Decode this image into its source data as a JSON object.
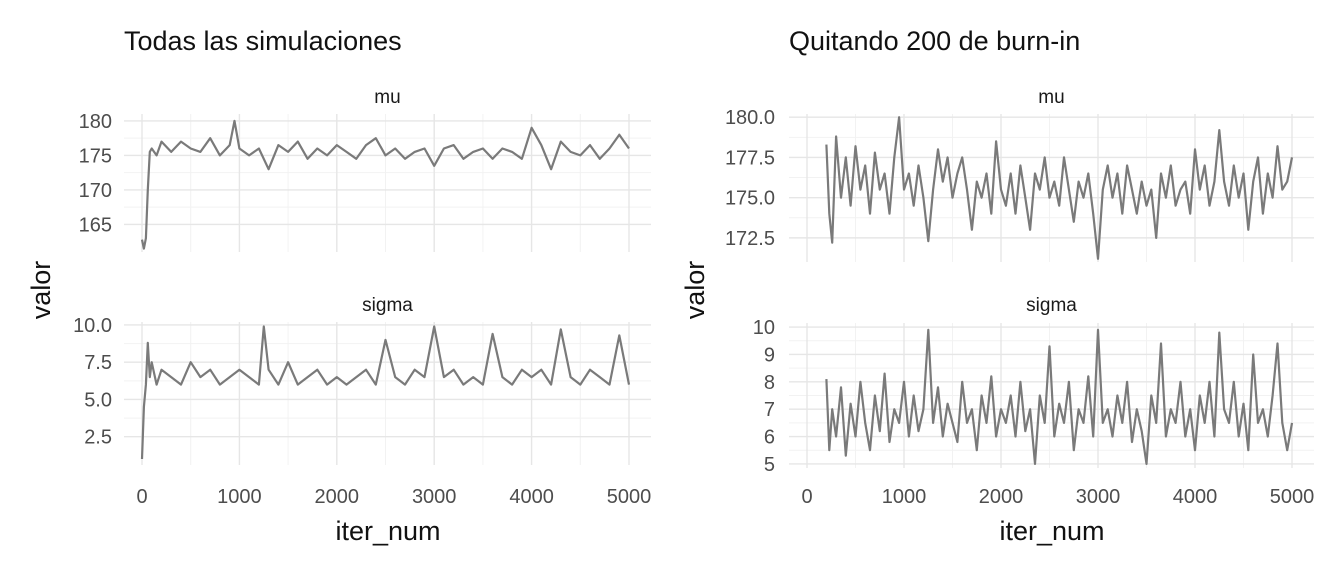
{
  "chart_data": [
    {
      "type": "line",
      "title": "Todas las simulaciones",
      "xlabel": "iter_num",
      "ylabel": "valor",
      "xlim": [
        0,
        5000
      ],
      "xticks": [
        "0",
        "1000",
        "2000",
        "3000",
        "4000",
        "5000"
      ],
      "color": "#7a7a7a",
      "grid": true,
      "facets": [
        {
          "name": "mu",
          "ylim": [
            161,
            181
          ],
          "yticks": [
            "165",
            "170",
            "175",
            "180"
          ],
          "x": [
            0,
            20,
            40,
            60,
            80,
            100,
            150,
            200,
            300,
            400,
            500,
            600,
            700,
            800,
            900,
            950,
            1000,
            1100,
            1200,
            1300,
            1400,
            1500,
            1600,
            1700,
            1800,
            1900,
            2000,
            2100,
            2200,
            2300,
            2400,
            2500,
            2600,
            2700,
            2800,
            2900,
            3000,
            3100,
            3200,
            3300,
            3400,
            3500,
            3600,
            3700,
            3800,
            3900,
            4000,
            4100,
            4200,
            4300,
            4400,
            4500,
            4600,
            4700,
            4800,
            4900,
            5000
          ],
          "values": [
            162.8,
            161.5,
            163.0,
            170.0,
            175.5,
            176.0,
            175.0,
            177.0,
            175.5,
            177.0,
            176.0,
            175.5,
            177.5,
            175.0,
            176.5,
            180.0,
            176.0,
            175.0,
            176.0,
            173.0,
            176.5,
            175.5,
            177.0,
            174.5,
            176.0,
            175.0,
            176.5,
            175.5,
            174.5,
            176.5,
            177.5,
            175.0,
            176.0,
            174.5,
            175.5,
            176.0,
            173.5,
            176.0,
            176.5,
            174.5,
            175.5,
            176.0,
            174.5,
            176.0,
            175.5,
            174.5,
            179.0,
            176.5,
            173.0,
            177.0,
            175.5,
            175.0,
            176.5,
            174.5,
            176.0,
            178.0,
            176.0
          ]
        },
        {
          "name": "sigma",
          "ylim": [
            0.6,
            10.2
          ],
          "yticks": [
            "2.5",
            "5.0",
            "7.5",
            "10.0"
          ],
          "x": [
            0,
            20,
            40,
            60,
            80,
            100,
            150,
            200,
            300,
            400,
            500,
            600,
            700,
            800,
            900,
            1000,
            1100,
            1200,
            1250,
            1300,
            1400,
            1500,
            1600,
            1700,
            1800,
            1900,
            2000,
            2100,
            2200,
            2300,
            2400,
            2500,
            2600,
            2700,
            2800,
            2900,
            3000,
            3100,
            3200,
            3300,
            3400,
            3500,
            3600,
            3700,
            3800,
            3900,
            4000,
            4100,
            4200,
            4300,
            4400,
            4500,
            4600,
            4700,
            4800,
            4900,
            5000
          ],
          "values": [
            1.0,
            4.5,
            6.0,
            8.8,
            6.5,
            7.5,
            6.0,
            7.0,
            6.5,
            6.0,
            7.5,
            6.5,
            7.0,
            6.0,
            6.5,
            7.0,
            6.5,
            6.0,
            9.9,
            7.0,
            6.0,
            7.5,
            6.0,
            6.5,
            7.0,
            6.0,
            6.5,
            6.0,
            6.5,
            7.0,
            6.0,
            9.0,
            6.5,
            6.0,
            7.0,
            6.5,
            9.9,
            6.5,
            7.0,
            6.0,
            6.5,
            6.0,
            9.4,
            6.5,
            6.0,
            7.0,
            6.5,
            7.0,
            6.0,
            9.7,
            6.5,
            6.0,
            7.0,
            6.5,
            6.0,
            9.3,
            6.0
          ]
        }
      ]
    },
    {
      "type": "line",
      "title": "Quitando 200 de burn-in",
      "xlabel": "iter_num",
      "ylabel": "valor",
      "xlim": [
        0,
        5000
      ],
      "xticks": [
        "0",
        "1000",
        "2000",
        "3000",
        "4000",
        "5000"
      ],
      "color": "#7a7a7a",
      "grid": true,
      "facets": [
        {
          "name": "mu",
          "ylim": [
            171.0,
            180.2
          ],
          "yticks": [
            "172.5",
            "175.0",
            "177.5",
            "180.0"
          ],
          "x": [
            200,
            230,
            260,
            300,
            350,
            400,
            450,
            500,
            550,
            600,
            650,
            700,
            750,
            800,
            850,
            900,
            950,
            1000,
            1050,
            1100,
            1150,
            1200,
            1250,
            1300,
            1350,
            1400,
            1450,
            1500,
            1550,
            1600,
            1650,
            1700,
            1750,
            1800,
            1850,
            1900,
            1950,
            2000,
            2050,
            2100,
            2150,
            2200,
            2250,
            2300,
            2350,
            2400,
            2450,
            2500,
            2550,
            2600,
            2650,
            2700,
            2750,
            2800,
            2850,
            2900,
            2950,
            3000,
            3050,
            3100,
            3150,
            3200,
            3250,
            3300,
            3350,
            3400,
            3450,
            3500,
            3550,
            3600,
            3650,
            3700,
            3750,
            3800,
            3850,
            3900,
            3950,
            4000,
            4050,
            4100,
            4150,
            4200,
            4250,
            4300,
            4350,
            4400,
            4450,
            4500,
            4550,
            4600,
            4650,
            4700,
            4750,
            4800,
            4850,
            4900,
            4950,
            5000
          ],
          "values": [
            178.3,
            174.0,
            172.2,
            178.8,
            175.0,
            177.5,
            174.5,
            178.2,
            175.5,
            177.0,
            174.0,
            177.8,
            175.5,
            176.5,
            174.0,
            177.5,
            180.0,
            175.5,
            176.5,
            174.5,
            177.0,
            175.0,
            172.3,
            175.5,
            178.0,
            176.0,
            177.5,
            175.0,
            176.5,
            177.5,
            175.5,
            173.0,
            176.0,
            175.0,
            176.5,
            174.0,
            178.5,
            175.5,
            174.5,
            176.5,
            174.0,
            177.0,
            175.0,
            173.0,
            176.5,
            175.5,
            177.5,
            175.0,
            176.0,
            174.5,
            177.5,
            175.5,
            173.5,
            176.0,
            175.0,
            176.5,
            174.0,
            171.2,
            175.5,
            177.0,
            175.0,
            176.5,
            174.0,
            177.0,
            175.5,
            174.0,
            176.0,
            174.5,
            175.5,
            172.5,
            176.5,
            175.0,
            177.0,
            174.5,
            175.5,
            176.0,
            174.0,
            178.0,
            175.5,
            177.0,
            174.5,
            176.0,
            179.2,
            176.0,
            174.5,
            177.0,
            175.0,
            176.5,
            173.0,
            176.0,
            177.5,
            174.0,
            176.5,
            175.0,
            178.2,
            175.5,
            176.0,
            177.5
          ]
        },
        {
          "name": "sigma",
          "ylim": [
            4.85,
            10.15
          ],
          "yticks": [
            "5",
            "6",
            "7",
            "8",
            "9",
            "10"
          ],
          "x": [
            200,
            230,
            260,
            300,
            350,
            400,
            450,
            500,
            550,
            600,
            650,
            700,
            750,
            800,
            850,
            900,
            950,
            1000,
            1050,
            1100,
            1150,
            1200,
            1250,
            1300,
            1350,
            1400,
            1450,
            1500,
            1550,
            1600,
            1650,
            1700,
            1750,
            1800,
            1850,
            1900,
            1950,
            2000,
            2050,
            2100,
            2150,
            2200,
            2250,
            2300,
            2350,
            2400,
            2450,
            2500,
            2550,
            2600,
            2650,
            2700,
            2750,
            2800,
            2850,
            2900,
            2950,
            3000,
            3050,
            3100,
            3150,
            3200,
            3250,
            3300,
            3350,
            3400,
            3450,
            3500,
            3550,
            3600,
            3650,
            3700,
            3750,
            3800,
            3850,
            3900,
            3950,
            4000,
            4050,
            4100,
            4150,
            4200,
            4250,
            4300,
            4350,
            4400,
            4450,
            4500,
            4550,
            4600,
            4650,
            4700,
            4750,
            4800,
            4850,
            4900,
            4950,
            5000
          ],
          "values": [
            8.1,
            5.5,
            7.0,
            6.0,
            7.8,
            5.3,
            7.2,
            6.0,
            8.0,
            6.5,
            5.5,
            7.5,
            6.2,
            8.3,
            5.8,
            7.0,
            6.5,
            8.0,
            6.0,
            7.5,
            6.2,
            7.0,
            9.9,
            6.5,
            7.8,
            6.0,
            7.2,
            6.5,
            5.8,
            8.0,
            6.5,
            7.0,
            5.5,
            7.5,
            6.5,
            8.2,
            6.0,
            7.0,
            6.5,
            7.5,
            6.0,
            8.0,
            6.2,
            7.0,
            5.0,
            7.5,
            6.5,
            9.3,
            6.0,
            7.2,
            6.5,
            8.0,
            5.5,
            7.0,
            6.5,
            8.2,
            6.0,
            9.9,
            6.5,
            7.0,
            6.0,
            7.5,
            6.5,
            8.0,
            5.8,
            7.0,
            6.2,
            5.0,
            7.5,
            6.5,
            9.4,
            6.0,
            7.0,
            6.5,
            8.0,
            6.0,
            7.0,
            5.5,
            7.5,
            6.5,
            8.0,
            6.0,
            9.8,
            7.0,
            6.5,
            8.0,
            6.0,
            7.2,
            5.5,
            9.0,
            6.5,
            7.0,
            6.0,
            7.5,
            9.4,
            6.5,
            5.5,
            6.5
          ]
        }
      ]
    }
  ]
}
